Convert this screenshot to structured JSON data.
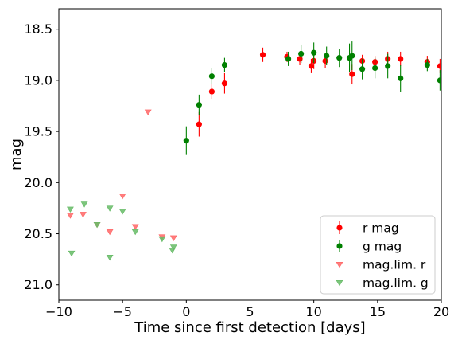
{
  "chart_data": {
    "type": "scatter",
    "title": "",
    "xlabel": "Time since first detection [days]",
    "ylabel": "mag",
    "xlim": [
      -10,
      20
    ],
    "ylim": [
      21.15,
      18.3
    ],
    "y_inverted": true,
    "xticks": [
      -10,
      -5,
      0,
      5,
      10,
      15,
      20
    ],
    "xtick_labels": [
      "−10",
      "−5",
      "0",
      "5",
      "10",
      "15",
      "20"
    ],
    "yticks": [
      18.5,
      19.0,
      19.5,
      20.0,
      20.5,
      21.0
    ],
    "ytick_labels": [
      "18.5",
      "19.0",
      "19.5",
      "20.0",
      "20.5",
      "21.0"
    ],
    "grid": false,
    "legend_position": "lower right",
    "series": [
      {
        "name": "r mag",
        "marker": "circle",
        "color": "#ff0000",
        "points": [
          {
            "x": 1.0,
            "y": 19.43,
            "err": 0.12
          },
          {
            "x": 2.0,
            "y": 19.11,
            "err": 0.07
          },
          {
            "x": 3.0,
            "y": 19.03,
            "err": 0.1
          },
          {
            "x": 6.0,
            "y": 18.75,
            "err": 0.07
          },
          {
            "x": 7.9,
            "y": 18.77,
            "err": 0.05
          },
          {
            "x": 8.9,
            "y": 18.79,
            "err": 0.06
          },
          {
            "x": 9.8,
            "y": 18.86,
            "err": 0.07
          },
          {
            "x": 10.0,
            "y": 18.81,
            "err": 0.08
          },
          {
            "x": 10.9,
            "y": 18.81,
            "err": 0.07
          },
          {
            "x": 13.0,
            "y": 18.94,
            "err": 0.1
          },
          {
            "x": 13.8,
            "y": 18.81,
            "err": 0.06
          },
          {
            "x": 14.8,
            "y": 18.82,
            "err": 0.06
          },
          {
            "x": 15.8,
            "y": 18.79,
            "err": 0.07
          },
          {
            "x": 16.8,
            "y": 18.79,
            "err": 0.07
          },
          {
            "x": 18.9,
            "y": 18.82,
            "err": 0.06
          },
          {
            "x": 19.9,
            "y": 18.86,
            "err": 0.07
          }
        ]
      },
      {
        "name": "g mag",
        "marker": "circle",
        "color": "#008000",
        "points": [
          {
            "x": 0.0,
            "y": 19.59,
            "err": 0.14
          },
          {
            "x": 1.0,
            "y": 19.24,
            "err": 0.1
          },
          {
            "x": 2.0,
            "y": 18.96,
            "err": 0.08
          },
          {
            "x": 3.0,
            "y": 18.85,
            "err": 0.07
          },
          {
            "x": 8.0,
            "y": 18.79,
            "err": 0.07
          },
          {
            "x": 9.0,
            "y": 18.74,
            "err": 0.09
          },
          {
            "x": 10.0,
            "y": 18.73,
            "err": 0.1
          },
          {
            "x": 11.0,
            "y": 18.76,
            "err": 0.09
          },
          {
            "x": 12.0,
            "y": 18.78,
            "err": 0.09
          },
          {
            "x": 12.8,
            "y": 18.78,
            "err": 0.14
          },
          {
            "x": 13.0,
            "y": 18.76,
            "err": 0.14
          },
          {
            "x": 13.8,
            "y": 18.89,
            "err": 0.1
          },
          {
            "x": 14.8,
            "y": 18.88,
            "err": 0.1
          },
          {
            "x": 15.8,
            "y": 18.86,
            "err": 0.12
          },
          {
            "x": 16.8,
            "y": 18.98,
            "err": 0.13
          },
          {
            "x": 18.9,
            "y": 18.85,
            "err": 0.06
          },
          {
            "x": 19.9,
            "y": 19.0,
            "err": 0.1
          }
        ]
      },
      {
        "name": "mag.lim. r",
        "marker": "triangle-down",
        "color": "#ff6666",
        "points": [
          {
            "x": -9.1,
            "y": 20.32
          },
          {
            "x": -8.1,
            "y": 20.31
          },
          {
            "x": -7.0,
            "y": 20.41
          },
          {
            "x": -6.0,
            "y": 20.48
          },
          {
            "x": -5.0,
            "y": 20.13
          },
          {
            "x": -4.0,
            "y": 20.43
          },
          {
            "x": -3.0,
            "y": 19.31
          },
          {
            "x": -1.9,
            "y": 20.53
          },
          {
            "x": -1.0,
            "y": 20.54
          }
        ]
      },
      {
        "name": "mag.lim. g",
        "marker": "triangle-down",
        "color": "#66bb66",
        "points": [
          {
            "x": -9.1,
            "y": 20.26
          },
          {
            "x": -9.0,
            "y": 20.69
          },
          {
            "x": -8.0,
            "y": 20.21
          },
          {
            "x": -7.0,
            "y": 20.41
          },
          {
            "x": -6.0,
            "y": 20.25
          },
          {
            "x": -6.0,
            "y": 20.73
          },
          {
            "x": -5.0,
            "y": 20.28
          },
          {
            "x": -4.0,
            "y": 20.48
          },
          {
            "x": -1.9,
            "y": 20.55
          },
          {
            "x": -1.1,
            "y": 20.66
          },
          {
            "x": -1.0,
            "y": 20.63
          }
        ]
      }
    ]
  }
}
